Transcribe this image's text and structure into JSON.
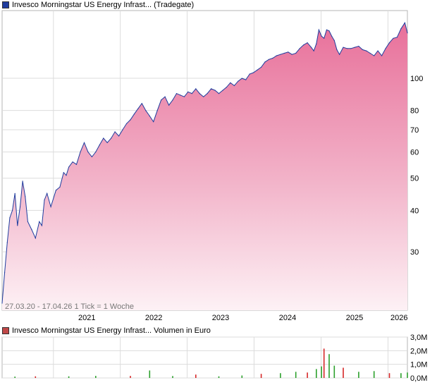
{
  "price_legend": {
    "label": "Invesco Morningstar US Energy Infrast... (Tradegate)",
    "color": "#1f3c9e"
  },
  "volume_legend": {
    "label": "Invesco Morningstar US Energy Infrast... Volumen in Euro",
    "color": "#c04848"
  },
  "footer": {
    "range": "27.03.20 - 17.04.26",
    "tick": "1 Tick = 1 Woche"
  },
  "chart_data": [
    {
      "type": "area",
      "title": "Invesco Morningstar US Energy Infrast... (Tradegate)",
      "xlabel": "",
      "ylabel": "",
      "x_tick_labels": [
        "2021",
        "2022",
        "2023",
        "2024",
        "2025",
        "2026"
      ],
      "y_tick_labels": [
        "30",
        "40",
        "50",
        "60",
        "70",
        "80",
        "100"
      ],
      "y_scale": "log",
      "ylim": [
        20,
        160
      ],
      "xlim": [
        "2020-03-27",
        "2026-04-17"
      ],
      "grid": true,
      "fill": "pink gradient",
      "series": [
        {
          "name": "Invesco Morningstar US Energy Infrast... (Tradegate)",
          "color": "#1f3c9e",
          "x": [
            "2020-03-27",
            "2020-04-10",
            "2020-04-24",
            "2020-05-08",
            "2020-05-22",
            "2020-06-05",
            "2020-06-19",
            "2020-07-03",
            "2020-07-17",
            "2020-07-31",
            "2020-08-14",
            "2020-09-04",
            "2020-09-25",
            "2020-10-16",
            "2020-10-30",
            "2020-11-13",
            "2020-11-27",
            "2020-12-18",
            "2021-01-15",
            "2021-02-05",
            "2021-02-26",
            "2021-03-12",
            "2021-03-26",
            "2021-04-16",
            "2021-05-07",
            "2021-05-28",
            "2021-06-18",
            "2021-07-09",
            "2021-07-30",
            "2021-08-20",
            "2021-09-10",
            "2021-10-01",
            "2021-10-22",
            "2021-11-12",
            "2021-12-03",
            "2021-12-24",
            "2022-01-14",
            "2022-02-04",
            "2022-02-25",
            "2022-03-18",
            "2022-04-08",
            "2022-04-29",
            "2022-05-20",
            "2022-06-10",
            "2022-07-01",
            "2022-07-22",
            "2022-08-12",
            "2022-09-02",
            "2022-09-23",
            "2022-10-14",
            "2022-11-04",
            "2022-11-25",
            "2022-12-16",
            "2023-01-06",
            "2023-01-27",
            "2023-02-17",
            "2023-03-10",
            "2023-03-31",
            "2023-04-21",
            "2023-05-12",
            "2023-06-02",
            "2023-06-23",
            "2023-07-14",
            "2023-08-04",
            "2023-08-25",
            "2023-09-15",
            "2023-10-06",
            "2023-10-27",
            "2023-11-17",
            "2023-12-08",
            "2023-12-29",
            "2024-01-19",
            "2024-02-09",
            "2024-03-01",
            "2024-03-22",
            "2024-04-12",
            "2024-05-03",
            "2024-05-24",
            "2024-06-14",
            "2024-07-05",
            "2024-07-26",
            "2024-08-16",
            "2024-09-06",
            "2024-09-27",
            "2024-10-18",
            "2024-11-08",
            "2024-11-22",
            "2024-12-06",
            "2024-12-20",
            "2025-01-03",
            "2025-01-17",
            "2025-01-31",
            "2025-02-14",
            "2025-02-28",
            "2025-03-14",
            "2025-03-28",
            "2025-04-11",
            "2025-05-02",
            "2025-05-23",
            "2025-06-13",
            "2025-07-04",
            "2025-07-25",
            "2025-08-15",
            "2025-09-05",
            "2025-09-26",
            "2025-10-17",
            "2025-11-07",
            "2025-11-28",
            "2025-12-19",
            "2026-01-09",
            "2026-01-30",
            "2026-02-20",
            "2026-03-13",
            "2026-04-03",
            "2026-04-17"
          ],
          "values": [
            21,
            26,
            32,
            38,
            40,
            45,
            36,
            41,
            49,
            44,
            37,
            35,
            33,
            37,
            36,
            43,
            45,
            41,
            46,
            47,
            52,
            51,
            54,
            56,
            55,
            60,
            64,
            60,
            58,
            60,
            63,
            66,
            64,
            66,
            69,
            67,
            70,
            73,
            75,
            78,
            81,
            84,
            80,
            77,
            74,
            80,
            86,
            88,
            83,
            86,
            90,
            89,
            88,
            91,
            90,
            93,
            90,
            88,
            90,
            93,
            92,
            90,
            92,
            94,
            97,
            95,
            98,
            100,
            99,
            103,
            104,
            106,
            108,
            112,
            114,
            115,
            117,
            118,
            119,
            120,
            118,
            119,
            123,
            126,
            128,
            124,
            121,
            127,
            140,
            134,
            132,
            140,
            139,
            134,
            130,
            122,
            118,
            124,
            123,
            123,
            124,
            125,
            122,
            121,
            119,
            117,
            121,
            117,
            123,
            128,
            132,
            133,
            141,
            147,
            137
          ]
        }
      ]
    },
    {
      "type": "bar",
      "title": "Invesco Morningstar US Energy Infrast... Volumen in Euro",
      "xlabel": "",
      "ylabel": "",
      "y_tick_labels": [
        "0,0M",
        "1,0M",
        "2,0M",
        "3,0M"
      ],
      "ylim": [
        0,
        3.0
      ],
      "unit": "M Euro",
      "grid": true,
      "series": [
        {
          "name": "Invesco Morningstar US Energy Infrast... Volumen in Euro",
          "colors": {
            "up": "#2ca02c",
            "down": "#d62728"
          },
          "x": [
            "2020-06-05",
            "2020-09-25",
            "2021-03-26",
            "2021-08-20",
            "2022-02-25",
            "2022-06-10",
            "2022-10-14",
            "2023-02-17",
            "2023-06-23",
            "2023-10-27",
            "2024-02-09",
            "2024-05-24",
            "2024-08-16",
            "2024-10-18",
            "2024-12-06",
            "2025-01-03",
            "2025-01-17",
            "2025-02-14",
            "2025-03-14",
            "2025-05-02",
            "2025-07-25",
            "2025-10-17",
            "2026-01-09",
            "2026-03-13",
            "2026-04-17"
          ],
          "values": [
            0.1,
            0.12,
            0.12,
            0.15,
            0.15,
            0.55,
            0.14,
            0.25,
            0.12,
            0.18,
            0.3,
            0.35,
            0.45,
            0.4,
            0.65,
            0.85,
            2.15,
            1.75,
            0.9,
            0.75,
            0.45,
            0.5,
            0.35,
            0.35,
            0.4
          ]
        }
      ]
    }
  ]
}
